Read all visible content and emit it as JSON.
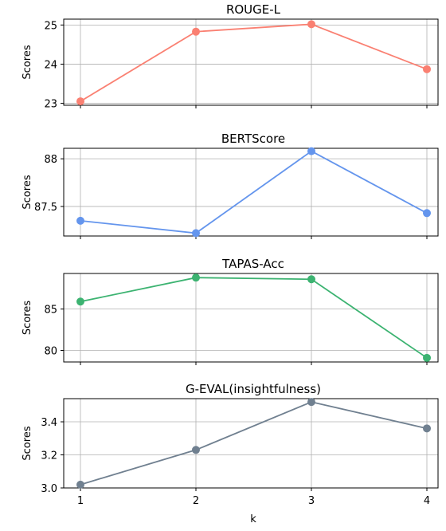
{
  "chart_data": [
    {
      "type": "line",
      "title": "ROUGE-L",
      "ylabel": "Scores",
      "xlabel": "",
      "x": [
        1,
        2,
        3,
        4
      ],
      "series": [
        {
          "values": [
            23.05,
            24.83,
            25.02,
            23.87
          ],
          "color": "#fa8072"
        }
      ],
      "yticks": [
        23,
        24,
        25
      ],
      "ylim": [
        22.95,
        25.15
      ],
      "grid": true
    },
    {
      "type": "line",
      "title": "BERTScore",
      "ylabel": "Scores",
      "xlabel": "",
      "x": [
        1,
        2,
        3,
        4
      ],
      "series": [
        {
          "values": [
            87.35,
            87.22,
            88.08,
            87.43
          ],
          "color": "#6495ed"
        }
      ],
      "yticks": [
        87.5,
        88.0
      ],
      "ylim": [
        87.19,
        88.11
      ],
      "grid": true
    },
    {
      "type": "line",
      "title": "TAPAS-Acc",
      "ylabel": "Scores",
      "xlabel": "",
      "x": [
        1,
        2,
        3,
        4
      ],
      "series": [
        {
          "values": [
            85.9,
            88.8,
            88.6,
            79.1
          ],
          "color": "#3cb371"
        }
      ],
      "yticks": [
        80,
        85
      ],
      "ylim": [
        78.6,
        89.3
      ],
      "grid": true
    },
    {
      "type": "line",
      "title": "G-EVAL(insightfulness)",
      "ylabel": "Scores",
      "xlabel": "k",
      "x": [
        1,
        2,
        3,
        4
      ],
      "series": [
        {
          "values": [
            3.02,
            3.23,
            3.52,
            3.36
          ],
          "color": "#708090"
        }
      ],
      "yticks": [
        3.0,
        3.2,
        3.4
      ],
      "ytick_labels": [
        "3.0",
        "3.2",
        "3.4"
      ],
      "ylim": [
        3.0,
        3.54
      ],
      "grid": true
    }
  ],
  "x_ticks": [
    "1",
    "2",
    "3",
    "4"
  ]
}
